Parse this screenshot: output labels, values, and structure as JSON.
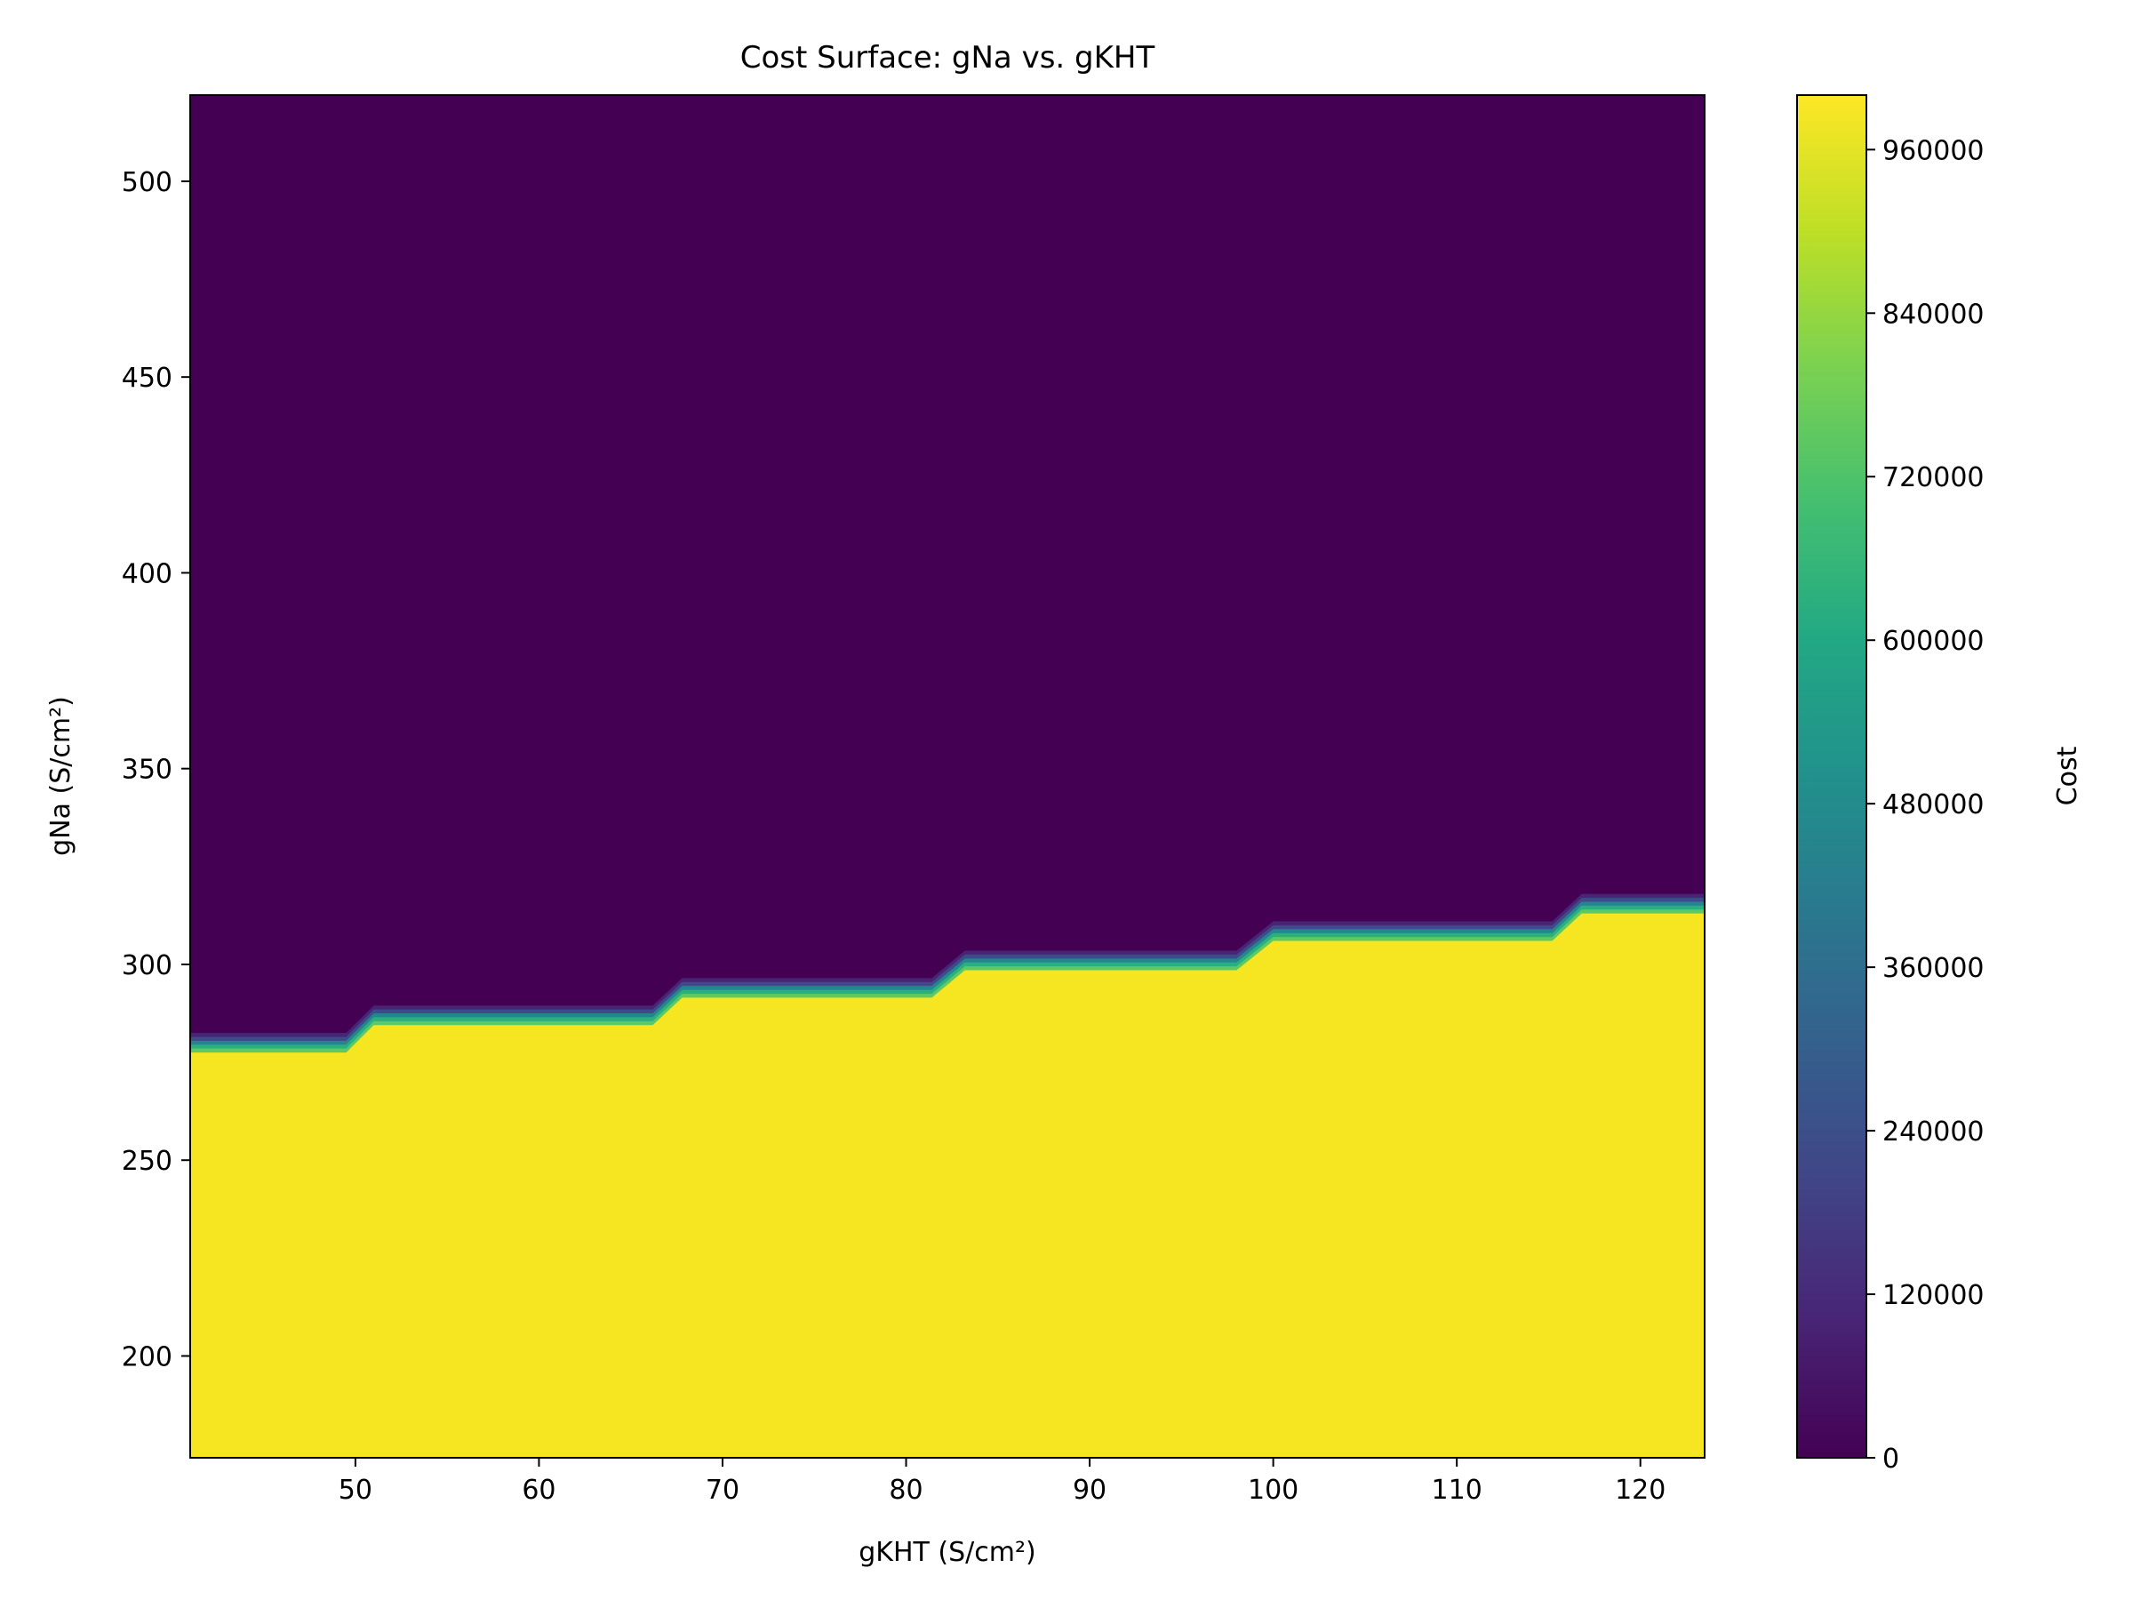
{
  "chart_data": {
    "type": "heatmap",
    "title": "Cost Surface: gNa vs. gKHT",
    "xlabel": "gKHT (S/cm²)",
    "ylabel": "gNa (S/cm²)",
    "xlim": [
      41.0,
      123.5
    ],
    "ylim": [
      174.0,
      522.0
    ],
    "xticks": [
      50,
      60,
      70,
      80,
      90,
      100,
      110,
      120
    ],
    "yticks": [
      200,
      250,
      300,
      350,
      400,
      450,
      500
    ],
    "colorbar": {
      "label": "Cost",
      "colormap": "viridis",
      "range": [
        0,
        1000000
      ],
      "ticks": [
        0,
        120000,
        240000,
        360000,
        480000,
        600000,
        720000,
        840000,
        960000
      ],
      "levels": 50
    },
    "regions": {
      "high_cost_value": 1000000,
      "low_cost_value": 0,
      "high_cost_region": "below boundary",
      "low_cost_region": "above boundary"
    },
    "boundary_steps": [
      {
        "x_start": 41.0,
        "x_end": 49.5,
        "gNa": 277.5
      },
      {
        "x_start": 51.0,
        "x_end": 66.2,
        "gNa": 284.5
      },
      {
        "x_start": 67.8,
        "x_end": 81.4,
        "gNa": 291.5
      },
      {
        "x_start": 83.2,
        "x_end": 98.0,
        "gNa": 298.5
      },
      {
        "x_start": 100.0,
        "x_end": 115.2,
        "gNa": 306.0
      },
      {
        "x_start": 116.8,
        "x_end": 123.5,
        "gNa": 313.0
      }
    ],
    "boundary_band_width": 5,
    "colors": {
      "low": "#440154",
      "high": "#f6e621",
      "band": [
        "#482475",
        "#3e4a89",
        "#25858e",
        "#2ab07f",
        "#5ec962"
      ]
    },
    "grid": false,
    "legend": "colorbar-right"
  }
}
